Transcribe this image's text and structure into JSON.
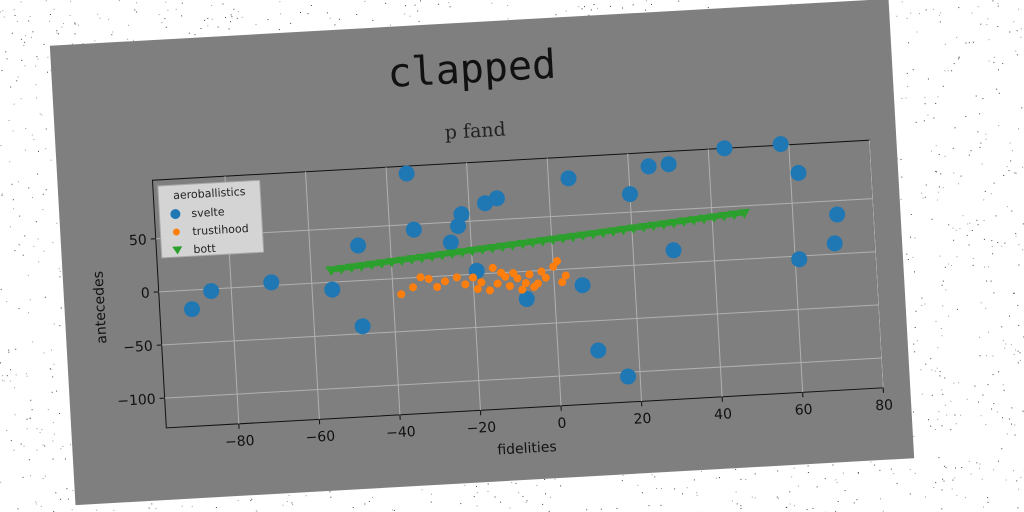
{
  "chart_data": {
    "type": "scatter",
    "title": "clapped",
    "subtitle": "p fand",
    "xlabel": "fidelities",
    "ylabel": "antecedes",
    "xlim": [
      -98,
      80
    ],
    "ylim": [
      -128,
      105
    ],
    "xticks": [
      -80,
      -60,
      -40,
      -20,
      0,
      20,
      40,
      60,
      80
    ],
    "yticks": [
      -100,
      -50,
      0,
      50
    ],
    "grid": true,
    "legend": {
      "title": "aeroballistics",
      "placement": "top-left"
    },
    "colors": {
      "svelte": "#1f77b4",
      "trustihood": "#ff7f0e",
      "bott": "#2ca02c"
    },
    "series": [
      {
        "name": "svelte",
        "marker": "circle-large",
        "points": [
          [
            -90,
            -18
          ],
          [
            -85,
            -2
          ],
          [
            -70,
            3
          ],
          [
            -55,
            -7
          ],
          [
            -48,
            33
          ],
          [
            -48,
            -43
          ],
          [
            -35,
            98
          ],
          [
            -34,
            45
          ],
          [
            -25,
            31
          ],
          [
            -23,
            46
          ],
          [
            -22,
            57
          ],
          [
            -19,
            3
          ],
          [
            -16,
            66
          ],
          [
            -13,
            70
          ],
          [
            -7,
            -26
          ],
          [
            5,
            85
          ],
          [
            7,
            -16
          ],
          [
            10,
            -78
          ],
          [
            17,
            -104
          ],
          [
            20,
            67
          ],
          [
            25,
            92
          ],
          [
            30,
            93
          ],
          [
            30,
            12
          ],
          [
            44,
            105
          ],
          [
            58,
            106
          ],
          [
            61,
            -3
          ],
          [
            62,
            78
          ],
          [
            70,
            10
          ],
          [
            71,
            37
          ]
        ]
      },
      {
        "name": "trustihood",
        "marker": "circle-small",
        "points": [
          [
            -38,
            -15
          ],
          [
            -35,
            -9
          ],
          [
            -33,
            0
          ],
          [
            -31,
            -2
          ],
          [
            -29,
            -10
          ],
          [
            -27,
            -5
          ],
          [
            -20,
            -3
          ],
          [
            -19,
            -14
          ],
          [
            -18,
            -8
          ],
          [
            -16,
            -16
          ],
          [
            -14,
            -10
          ],
          [
            -12,
            -4
          ],
          [
            -11,
            -13
          ],
          [
            -10,
            -1
          ],
          [
            -9,
            -6
          ],
          [
            -8,
            -17
          ],
          [
            -7,
            -11
          ],
          [
            -6,
            -3
          ],
          [
            -5,
            -15
          ],
          [
            -3,
            -1
          ],
          [
            -2,
            -7
          ],
          [
            0,
            3
          ],
          [
            2,
            -12
          ],
          [
            3,
            -6
          ],
          [
            -22,
            -9
          ],
          [
            -24,
            -2
          ],
          [
            -15,
            5
          ],
          [
            -13,
            0
          ],
          [
            1,
            8
          ],
          [
            -4,
            -12
          ]
        ]
      },
      {
        "name": "bott",
        "marker": "triangle-down",
        "line": true,
        "x_range": [
          -55,
          48
        ],
        "y_range": [
          11,
          43
        ],
        "count": 42
      }
    ]
  }
}
